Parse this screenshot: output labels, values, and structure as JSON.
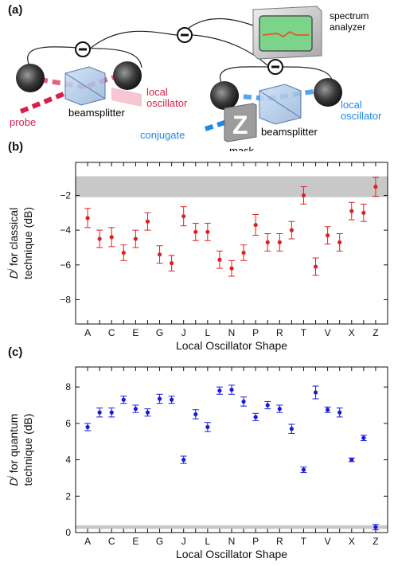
{
  "panels": {
    "a": "(a)",
    "b": "(b)",
    "c": "(c)"
  },
  "diagram": {
    "spectrum_analyzer": [
      "spectrum",
      "analyzer"
    ],
    "minus_sign": "−",
    "probe": "probe",
    "beamsplitter_left": "beamsplitter",
    "local_oscillator_left": [
      "local",
      "oscillator"
    ],
    "conjugate": "conjugate",
    "mask": "mask",
    "mask_letter": "Z",
    "beamsplitter_right": "beamsplitter",
    "local_oscillator_right": [
      "local",
      "oscillator"
    ],
    "colors": {
      "probe": "#d6204a",
      "conjugate": "#1e88e5",
      "screen": "#7ad48a"
    }
  },
  "chart_data": [
    {
      "type": "scatter",
      "panel": "(b)",
      "ylabel_line1": "D^i for classical",
      "ylabel_line2": "technique (dB)",
      "ylabel_symbol": "D",
      "ylabel_sup": "i",
      "ylabel_rest1": " for classical",
      "xlabel": "Local Oscillator Shape",
      "ylim": [
        -9.4,
        -0.1
      ],
      "yticks": [
        -8,
        -6,
        -4,
        -2
      ],
      "color": "#e02020",
      "shaded_band": [
        -2.1,
        -0.9
      ],
      "categories": [
        "A",
        "B",
        "C",
        "D",
        "E",
        "F",
        "G",
        "H",
        "J",
        "K",
        "L",
        "M",
        "N",
        "O",
        "P",
        "Q",
        "R",
        "S",
        "T",
        "U",
        "V",
        "W",
        "X",
        "Y",
        "Z"
      ],
      "tick_labels": [
        "A",
        "",
        "C",
        "",
        "E",
        "",
        "G",
        "",
        "J",
        "",
        "L",
        "",
        "N",
        "",
        "P",
        "",
        "R",
        "",
        "T",
        "",
        "V",
        "",
        "X",
        "",
        "Z"
      ],
      "values": [
        -3.3,
        -4.5,
        -4.4,
        -5.3,
        -4.5,
        -3.5,
        -5.4,
        -5.9,
        -3.2,
        -4.1,
        -4.1,
        -5.7,
        -6.2,
        -5.3,
        -3.7,
        -4.7,
        -4.7,
        -4.0,
        -2.0,
        -6.1,
        -4.3,
        -4.7,
        -2.9,
        -3.0,
        -1.5
      ],
      "errors": [
        0.55,
        0.5,
        0.55,
        0.45,
        0.5,
        0.5,
        0.5,
        0.45,
        0.55,
        0.5,
        0.5,
        0.5,
        0.45,
        0.45,
        0.6,
        0.5,
        0.5,
        0.5,
        0.5,
        0.5,
        0.5,
        0.5,
        0.5,
        0.5,
        0.55
      ]
    },
    {
      "type": "scatter",
      "panel": "(c)",
      "ylabel_symbol": "D",
      "ylabel_sup": "i",
      "ylabel_rest1": " for quantum",
      "ylabel_line2": "technique (dB)",
      "xlabel": "Local Oscillator Shape",
      "ylim": [
        0,
        9.1
      ],
      "yticks": [
        0,
        2,
        4,
        6,
        8
      ],
      "color": "#1a1adb",
      "shaded_band": [
        0.2,
        0.4
      ],
      "categories": [
        "A",
        "B",
        "C",
        "D",
        "E",
        "F",
        "G",
        "H",
        "J",
        "K",
        "L",
        "M",
        "N",
        "O",
        "P",
        "Q",
        "R",
        "S",
        "T",
        "U",
        "V",
        "W",
        "X",
        "Y",
        "Z"
      ],
      "tick_labels": [
        "A",
        "",
        "C",
        "",
        "E",
        "",
        "G",
        "",
        "J",
        "",
        "L",
        "",
        "N",
        "",
        "P",
        "",
        "R",
        "",
        "T",
        "",
        "V",
        "",
        "X",
        "",
        "Z"
      ],
      "values": [
        5.8,
        6.6,
        6.6,
        7.3,
        6.8,
        6.6,
        7.35,
        7.3,
        4.0,
        6.5,
        5.8,
        7.8,
        7.85,
        7.2,
        6.35,
        7.0,
        6.8,
        5.7,
        3.45,
        7.7,
        6.75,
        6.6,
        4.0,
        5.2,
        0.3
      ],
      "errors": [
        0.2,
        0.25,
        0.25,
        0.2,
        0.2,
        0.2,
        0.25,
        0.2,
        0.2,
        0.25,
        0.25,
        0.2,
        0.25,
        0.25,
        0.2,
        0.2,
        0.2,
        0.25,
        0.15,
        0.35,
        0.15,
        0.25,
        0.1,
        0.15,
        0.15
      ]
    }
  ]
}
